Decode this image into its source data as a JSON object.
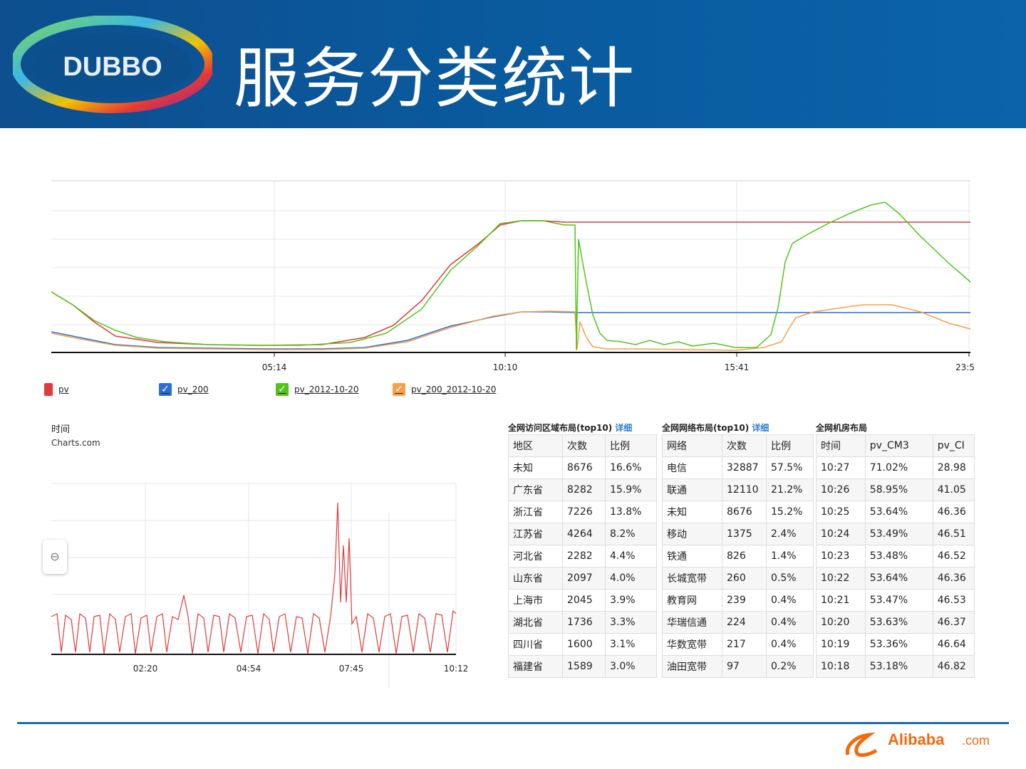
{
  "header": {
    "title": "服务分类统计",
    "logo_text": "DUBBO"
  },
  "top_chart": {
    "x_ticks": [
      "05:14",
      "10:10",
      "15:41",
      "23:5"
    ],
    "legend": [
      {
        "label": "pv",
        "color": "#e03a3a"
      },
      {
        "label": "pv_200",
        "color": "#2a6fd6"
      },
      {
        "label": "pv_2012-10-20",
        "color": "#52c41a"
      },
      {
        "label": "pv_200_2012-10-20",
        "color": "#f5a04a"
      }
    ]
  },
  "bottom_chart": {
    "title": "时间",
    "subtitle": "Charts.com",
    "x_ticks": [
      "02:20",
      "04:54",
      "07:45",
      "10:12"
    ],
    "zoom_icon": "zoom-reset-icon"
  },
  "tables": {
    "region": {
      "title": "全网访问区域布局(top10)",
      "link": "详细",
      "headers": [
        "地区",
        "次数",
        "比例"
      ],
      "rows": [
        [
          "未知",
          "8676",
          "16.6%"
        ],
        [
          "广东省",
          "8282",
          "15.9%"
        ],
        [
          "浙江省",
          "7226",
          "13.8%"
        ],
        [
          "江苏省",
          "4264",
          "8.2%"
        ],
        [
          "河北省",
          "2282",
          "4.4%"
        ],
        [
          "山东省",
          "2097",
          "4.0%"
        ],
        [
          "上海市",
          "2045",
          "3.9%"
        ],
        [
          "湖北省",
          "1736",
          "3.3%"
        ],
        [
          "四川省",
          "1600",
          "3.1%"
        ],
        [
          "福建省",
          "1589",
          "3.0%"
        ]
      ]
    },
    "network": {
      "title": "全网网络布局(top10)",
      "link": "详细",
      "headers": [
        "网络",
        "次数",
        "比例"
      ],
      "rows": [
        [
          "电信",
          "32887",
          "57.5%"
        ],
        [
          "联通",
          "12110",
          "21.2%"
        ],
        [
          "未知",
          "8676",
          "15.2%"
        ],
        [
          "移动",
          "1375",
          "2.4%"
        ],
        [
          "铁通",
          "826",
          "1.4%"
        ],
        [
          "长城宽带",
          "260",
          "0.5%"
        ],
        [
          "教育网",
          "239",
          "0.4%"
        ],
        [
          "华瑞信通",
          "224",
          "0.4%"
        ],
        [
          "华数宽带",
          "217",
          "0.4%"
        ],
        [
          "油田宽带",
          "97",
          "0.2%"
        ]
      ]
    },
    "room": {
      "title": "全网机房布局",
      "headers": [
        "时间",
        "pv_CM3",
        "pv_CI"
      ],
      "rows": [
        [
          "10:27",
          "71.02%",
          "28.98"
        ],
        [
          "10:26",
          "58.95%",
          "41.05"
        ],
        [
          "10:25",
          "53.64%",
          "46.36"
        ],
        [
          "10:24",
          "53.49%",
          "46.51"
        ],
        [
          "10:23",
          "53.48%",
          "46.52"
        ],
        [
          "10:22",
          "53.64%",
          "46.36"
        ],
        [
          "10:21",
          "53.47%",
          "46.53"
        ],
        [
          "10:20",
          "53.63%",
          "46.37"
        ],
        [
          "10:19",
          "53.36%",
          "46.64"
        ],
        [
          "10:18",
          "53.18%",
          "46.82"
        ]
      ]
    }
  },
  "footer": {
    "brand": "Alibaba",
    "brand_suffix": ".com"
  }
}
